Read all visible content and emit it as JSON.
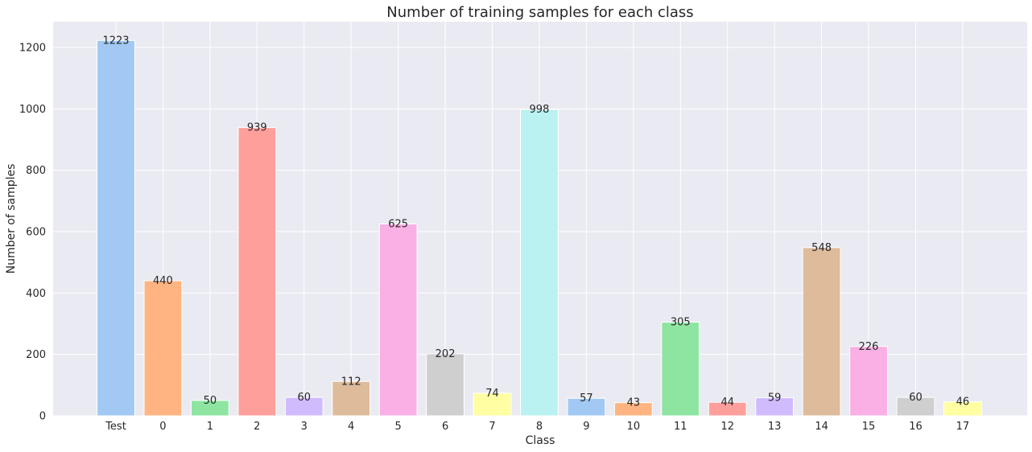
{
  "chart_data": {
    "type": "bar",
    "title": "Number of training samples for each class",
    "xlabel": "Class",
    "ylabel": "Number of samples",
    "categories": [
      "Test",
      "0",
      "1",
      "2",
      "3",
      "4",
      "5",
      "6",
      "7",
      "8",
      "9",
      "10",
      "11",
      "12",
      "13",
      "14",
      "15",
      "16",
      "17"
    ],
    "values": [
      1223,
      440,
      50,
      939,
      60,
      112,
      625,
      202,
      74,
      998,
      57,
      43,
      305,
      44,
      59,
      548,
      226,
      60,
      46
    ],
    "data_labels": [
      "1223",
      "440",
      "50",
      "939",
      "60",
      "112",
      "625",
      "202",
      "74",
      "998",
      "57",
      "43",
      "305",
      "44",
      "59",
      "548",
      "226",
      "60",
      "46"
    ],
    "yticks": [
      0,
      200,
      400,
      600,
      800,
      1000,
      1200
    ],
    "ytick_labels": [
      "0",
      "200",
      "400",
      "600",
      "800",
      "1000",
      "1200"
    ],
    "ylim": [
      0,
      1284
    ],
    "grid": true,
    "legend": false,
    "colors": [
      "#a1c9f4",
      "#ffb482",
      "#8de5a1",
      "#ff9f9b",
      "#d0bbff",
      "#debb9b",
      "#fab0e4",
      "#cfcfcf",
      "#fffea3",
      "#b9f2f0"
    ],
    "background": "#eaeaf2",
    "grid_color": "#ffffff"
  }
}
